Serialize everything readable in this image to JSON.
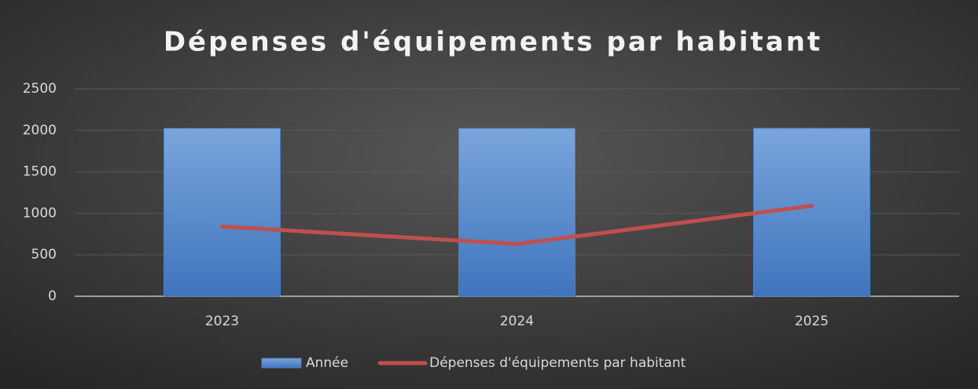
{
  "chart_data": {
    "type": "combo",
    "title": "Dépenses d'équipements par habitant",
    "categories": [
      "2023",
      "2024",
      "2025"
    ],
    "series": [
      {
        "name": "Année",
        "type": "bar",
        "color": "#4f81bd",
        "values": [
          2023,
          2024,
          2025
        ]
      },
      {
        "name": "Dépenses d'équipements par habitant",
        "type": "line",
        "color": "#c0504d",
        "values": [
          840,
          630,
          1090
        ]
      }
    ],
    "ylim": [
      0,
      2500
    ],
    "yticks": [
      0,
      500,
      1000,
      1500,
      2000,
      2500
    ],
    "grid": true,
    "legend": "bottom"
  }
}
